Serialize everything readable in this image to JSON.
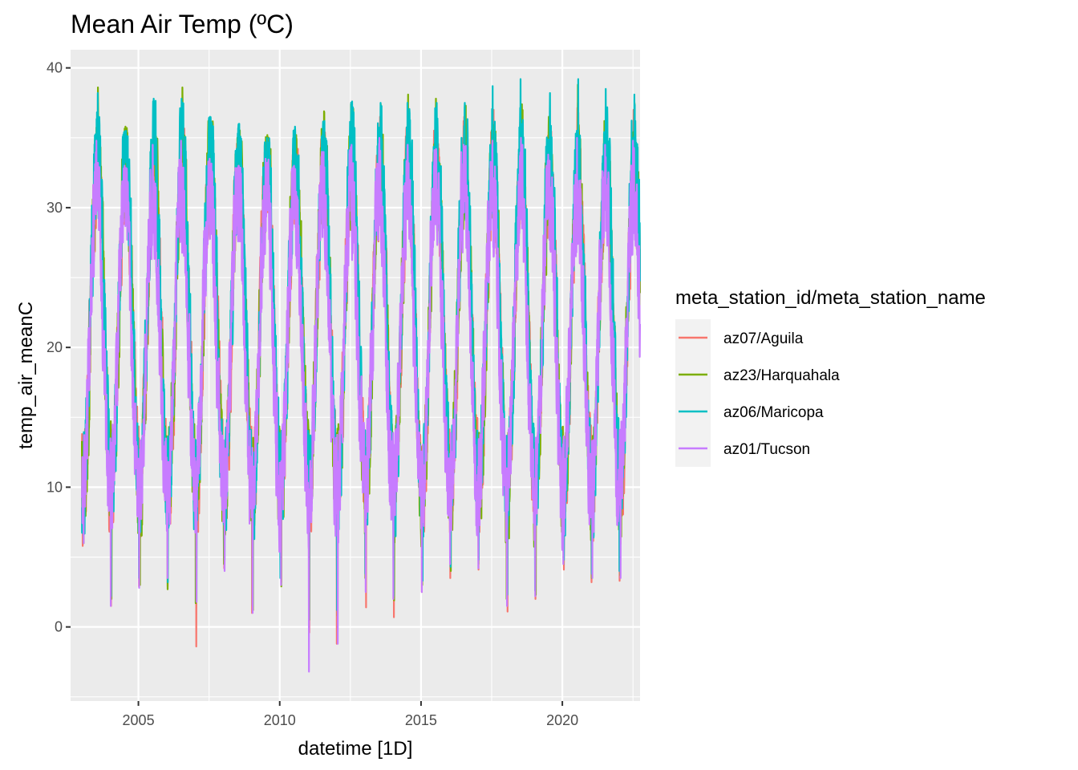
{
  "chart_data": {
    "type": "line",
    "title": "Mean Air Temp (ºC)",
    "xlabel": "datetime [1D]",
    "ylabel": "temp_air_meanC",
    "xlim": [
      2002.6,
      2022.75
    ],
    "ylim": [
      -5.3,
      41.3
    ],
    "x_ticks": [
      2005,
      2010,
      2015,
      2020
    ],
    "x_tick_labels": [
      "2005",
      "2010",
      "2015",
      "2020"
    ],
    "y_ticks": [
      0,
      10,
      20,
      30,
      40
    ],
    "y_tick_labels": [
      "0",
      "10",
      "20",
      "30",
      "40"
    ],
    "grid": true,
    "legend": {
      "title": "meta_station_id/meta_station_name",
      "placement": "right"
    },
    "panel_background": "#ebebeb",
    "x_range": [
      2003.0,
      2022.75
    ],
    "series": [
      {
        "name": "az07/Aguila",
        "color": "#F8766D",
        "seasonal_cycle": {
          "annual_mean_C": 21.5,
          "amplitude_C": 11.5,
          "warmest_day_fraction_of_year": 0.55
        },
        "annual_extremes": {
          "years": [
            2003,
            2004,
            2005,
            2006,
            2007,
            2008,
            2009,
            2010,
            2011,
            2012,
            2013,
            2014,
            2015,
            2016,
            2017,
            2018,
            2019,
            2020,
            2021,
            2022
          ],
          "max": [
            36.5,
            34.5,
            36.8,
            37.5,
            35.5,
            35.0,
            34.2,
            34.8,
            35.5,
            36.5,
            36.5,
            36.2,
            35.8,
            36.5,
            37.0,
            37.2,
            35.5,
            37.5,
            36.8,
            37.0
          ],
          "min": [
            5.8,
            1.5,
            2.9,
            2.9,
            -1.4,
            4.2,
            1.0,
            3.2,
            -0.4,
            -1.2,
            1.4,
            0.7,
            2.5,
            3.5,
            4.1,
            1.1,
            2.0,
            4.1,
            3.2,
            3.3
          ]
        }
      },
      {
        "name": "az23/Harquahala",
        "color": "#7CAE00",
        "seasonal_cycle": {
          "annual_mean_C": 21.5,
          "amplitude_C": 11.8,
          "warmest_day_fraction_of_year": 0.55
        },
        "annual_extremes": {
          "years": [
            2003,
            2004,
            2005,
            2006,
            2007,
            2008,
            2009,
            2010,
            2011,
            2012,
            2013,
            2014,
            2015,
            2016,
            2017,
            2018,
            2019,
            2020,
            2021,
            2022
          ],
          "max": [
            38.6,
            35.8,
            35.8,
            38.6,
            36.2,
            35.7,
            35.2,
            35.2,
            36.9,
            37.4,
            37.4,
            38.1,
            37.8,
            37.3,
            36.0,
            37.4,
            36.5,
            38.8,
            36.7,
            37.5
          ],
          "min": [
            6.0,
            2.0,
            3.0,
            2.7,
            1.7,
            4.5,
            1.2,
            2.9,
            0.5,
            0.8,
            3.5,
            1.9,
            3.0,
            4.0,
            4.5,
            2.0,
            2.3,
            4.5,
            3.5,
            3.7
          ]
        }
      },
      {
        "name": "az06/Maricopa",
        "color": "#00BFC4",
        "seasonal_cycle": {
          "annual_mean_C": 22.0,
          "amplitude_C": 12.2,
          "warmest_day_fraction_of_year": 0.55
        },
        "annual_extremes": {
          "years": [
            2003,
            2004,
            2005,
            2006,
            2007,
            2008,
            2009,
            2010,
            2011,
            2012,
            2013,
            2014,
            2015,
            2016,
            2017,
            2018,
            2019,
            2020,
            2021,
            2022
          ],
          "max": [
            38.2,
            35.5,
            37.8,
            37.8,
            36.5,
            36.0,
            35.0,
            35.8,
            36.2,
            37.6,
            37.5,
            37.5,
            37.5,
            37.5,
            38.7,
            39.2,
            38.2,
            39.2,
            38.5,
            38.1
          ],
          "min": [
            6.5,
            2.2,
            3.5,
            3.2,
            1.8,
            4.8,
            1.5,
            3.5,
            0.6,
            1.2,
            3.8,
            2.2,
            3.3,
            4.3,
            4.8,
            2.3,
            2.6,
            4.8,
            3.8,
            4.0
          ]
        }
      },
      {
        "name": "az01/Tucson",
        "color": "#C77CFF",
        "seasonal_cycle": {
          "annual_mean_C": 20.5,
          "amplitude_C": 10.8,
          "warmest_day_fraction_of_year": 0.52
        },
        "annual_extremes": {
          "years": [
            2003,
            2004,
            2005,
            2006,
            2007,
            2008,
            2009,
            2010,
            2011,
            2012,
            2013,
            2014,
            2015,
            2016,
            2017,
            2018,
            2019,
            2020,
            2021,
            2022
          ],
          "max": [
            34.8,
            33.0,
            34.5,
            34.8,
            33.5,
            33.0,
            33.5,
            33.0,
            34.0,
            34.5,
            35.0,
            34.5,
            34.2,
            34.5,
            34.8,
            35.0,
            33.8,
            35.0,
            34.5,
            34.8
          ],
          "min": [
            6.0,
            1.5,
            2.8,
            3.5,
            1.8,
            4.0,
            1.0,
            3.0,
            -3.2,
            -1.2,
            2.5,
            2.0,
            2.5,
            4.5,
            4.2,
            1.5,
            2.2,
            4.5,
            3.5,
            3.5
          ]
        }
      }
    ]
  }
}
